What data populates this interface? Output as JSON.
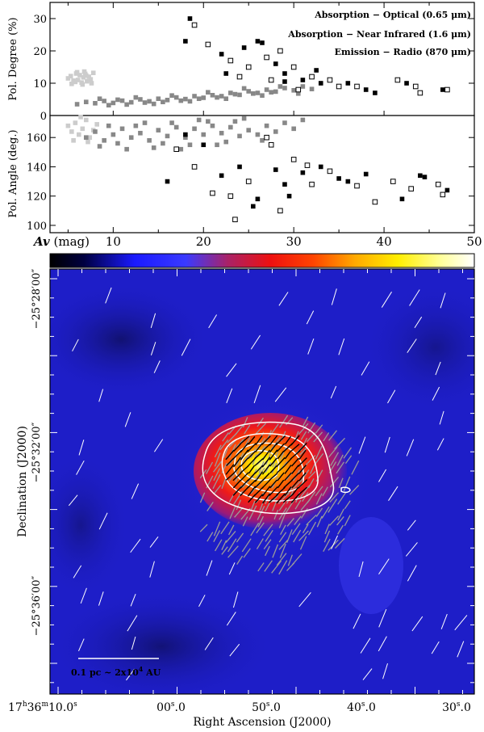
{
  "chart_data": [
    {
      "type": "scatter",
      "panel": "top",
      "ylabel": "Pol. Degree (%)",
      "ylim": [
        0,
        35
      ],
      "xlim": [
        3,
        50
      ],
      "yticks": [
        0,
        10,
        20,
        30
      ],
      "legend_position": "top-right",
      "series": [
        {
          "name": "Absorption − Optical (0.65 μm)",
          "legend": "Absorption − Optical (0.65 μm)",
          "color": "#cccccc",
          "marker": "filled-square",
          "points": [
            [
              5.0,
              11.5
            ],
            [
              5.3,
              12.2
            ],
            [
              5.6,
              10.8
            ],
            [
              5.9,
              13.0
            ],
            [
              6.1,
              11.0
            ],
            [
              6.3,
              12.5
            ],
            [
              6.5,
              10.2
            ],
            [
              6.7,
              11.8
            ],
            [
              6.9,
              12.9
            ],
            [
              7.1,
              10.6
            ],
            [
              7.3,
              12.0
            ],
            [
              7.5,
              11.2
            ],
            [
              7.8,
              13.2
            ],
            [
              5.4,
              9.8
            ],
            [
              6.0,
              13.4
            ],
            [
              6.6,
              9.6
            ],
            [
              7.0,
              12.4
            ],
            [
              7.6,
              10.0
            ],
            [
              5.8,
              10.4
            ],
            [
              6.8,
              13.6
            ]
          ]
        },
        {
          "name": "Absorption − Near Infrared (1.6 μm)",
          "legend": "Absorption − Near Infrared (1.6 μm)",
          "color": "#888888",
          "marker": "filled-square",
          "points": [
            [
              6,
              3.5
            ],
            [
              7,
              4.2
            ],
            [
              8,
              3.8
            ],
            [
              9,
              4.5
            ],
            [
              10,
              3.9
            ],
            [
              11,
              4.6
            ],
            [
              12,
              4.1
            ],
            [
              13,
              5.0
            ],
            [
              14,
              4.4
            ],
            [
              15,
              5.2
            ],
            [
              16,
              4.8
            ],
            [
              17,
              5.6
            ],
            [
              18,
              5.1
            ],
            [
              19,
              6.0
            ],
            [
              20,
              5.5
            ],
            [
              21,
              6.3
            ],
            [
              22,
              6.0
            ],
            [
              23,
              7.0
            ],
            [
              24,
              6.4
            ],
            [
              25,
              7.5
            ],
            [
              26,
              7.0
            ],
            [
              27,
              8.0
            ],
            [
              28,
              7.4
            ],
            [
              29,
              8.5
            ],
            [
              30,
              7.8
            ],
            [
              31,
              9.0
            ],
            [
              32,
              8.2
            ],
            [
              8.5,
              5.2
            ],
            [
              10.5,
              4.9
            ],
            [
              12.5,
              5.6
            ],
            [
              14.5,
              3.6
            ],
            [
              16.5,
              6.2
            ],
            [
              18.5,
              4.4
            ],
            [
              20.5,
              7.2
            ],
            [
              22.5,
              5.2
            ],
            [
              24.5,
              8.4
            ],
            [
              26.5,
              6.2
            ],
            [
              28.5,
              9.0
            ],
            [
              30.5,
              6.8
            ],
            [
              9.5,
              3.2
            ],
            [
              11.5,
              3.4
            ],
            [
              13.5,
              4.0
            ],
            [
              15.5,
              4.2
            ],
            [
              17.5,
              4.6
            ],
            [
              19.5,
              5.2
            ],
            [
              21.5,
              5.6
            ],
            [
              23.5,
              6.6
            ],
            [
              25.5,
              6.8
            ],
            [
              27.5,
              7.2
            ]
          ]
        },
        {
          "name": "Emission − Radio (870 μm)",
          "legend": "Emission − Radio (870 μm)",
          "color": "#000000",
          "marker": "filled-and-open-square",
          "points": [
            [
              18.5,
              30
            ],
            [
              19,
              28
            ],
            [
              18,
              23
            ],
            [
              20.5,
              22
            ],
            [
              22,
              19
            ],
            [
              23,
              17
            ],
            [
              24.5,
              21
            ],
            [
              25,
              15
            ],
            [
              26,
              23
            ],
            [
              27,
              18
            ],
            [
              28,
              16
            ],
            [
              28.5,
              20
            ],
            [
              29,
              13
            ],
            [
              30,
              15
            ],
            [
              31,
              11
            ],
            [
              32,
              12
            ],
            [
              33,
              10
            ],
            [
              34,
              11
            ],
            [
              36,
              10
            ],
            [
              37,
              9
            ],
            [
              38,
              8
            ],
            [
              41.5,
              11
            ],
            [
              42.5,
              10
            ],
            [
              43.5,
              9
            ],
            [
              46.5,
              8
            ],
            [
              47,
              8
            ],
            [
              26.5,
              22.5
            ],
            [
              24,
              12
            ],
            [
              29,
              10.5
            ],
            [
              30.5,
              8
            ],
            [
              22.5,
              13
            ],
            [
              27.5,
              11
            ],
            [
              32.5,
              14
            ],
            [
              35,
              9
            ],
            [
              39,
              7
            ],
            [
              44,
              7
            ]
          ]
        }
      ]
    },
    {
      "type": "scatter",
      "panel": "middle",
      "ylabel": "Pol. Angle (deg.)",
      "xlabel": "Av (mag)",
      "xlim": [
        3,
        50
      ],
      "ylim": [
        95,
        175
      ],
      "yticks": [
        100,
        120,
        140,
        160
      ],
      "xticks": [
        10,
        20,
        30,
        40,
        50
      ],
      "series": [
        {
          "name": "Absorption − Optical (0.65 μm)",
          "color": "#cccccc",
          "marker": "filled-square",
          "points": [
            [
              5.0,
              168
            ],
            [
              5.4,
              164
            ],
            [
              5.8,
              170
            ],
            [
              6.2,
              162
            ],
            [
              6.6,
              166
            ],
            [
              7.0,
              172
            ],
            [
              7.4,
              160
            ],
            [
              7.8,
              165
            ],
            [
              8.2,
              169
            ],
            [
              5.6,
              158
            ],
            [
              6.4,
              174
            ],
            [
              7.2,
              157
            ]
          ]
        },
        {
          "name": "Absorption − Near Infrared (1.6 μm)",
          "color": "#888888",
          "marker": "filled-square",
          "points": [
            [
              7,
              160
            ],
            [
              8,
              164
            ],
            [
              9,
              158
            ],
            [
              10,
              162
            ],
            [
              11,
              166
            ],
            [
              12,
              160
            ],
            [
              13,
              163
            ],
            [
              14,
              158
            ],
            [
              15,
              165
            ],
            [
              16,
              161
            ],
            [
              17,
              167
            ],
            [
              18,
              160
            ],
            [
              19,
              166
            ],
            [
              20,
              162
            ],
            [
              21,
              168
            ],
            [
              22,
              163
            ],
            [
              23,
              167
            ],
            [
              24,
              161
            ],
            [
              25,
              165
            ],
            [
              26,
              162
            ],
            [
              27,
              168
            ],
            [
              28,
              164
            ],
            [
              29,
              170
            ],
            [
              30,
              166
            ],
            [
              31,
              172
            ],
            [
              8.5,
              154
            ],
            [
              10.5,
              156
            ],
            [
              12.5,
              168
            ],
            [
              14.5,
              153
            ],
            [
              16.5,
              170
            ],
            [
              18.5,
              155
            ],
            [
              20.5,
              171
            ],
            [
              22.5,
              157
            ],
            [
              24.5,
              173
            ],
            [
              26.5,
              158
            ],
            [
              9.5,
              168
            ],
            [
              11.5,
              152
            ],
            [
              13.5,
              170
            ],
            [
              15.5,
              156
            ],
            [
              17.5,
              152
            ],
            [
              19.5,
              172
            ],
            [
              21.5,
              155
            ],
            [
              23.5,
              171
            ]
          ]
        },
        {
          "name": "Emission − Radio (870 μm)",
          "color": "#000000",
          "marker": "filled-and-open-square",
          "points": [
            [
              16,
              130
            ],
            [
              17,
              152
            ],
            [
              18,
              162
            ],
            [
              19,
              140
            ],
            [
              20,
              155
            ],
            [
              21,
              122
            ],
            [
              22,
              134
            ],
            [
              23,
              120
            ],
            [
              24,
              140
            ],
            [
              25,
              130
            ],
            [
              26,
              118
            ],
            [
              27,
              160
            ],
            [
              28,
              138
            ],
            [
              28.5,
              110
            ],
            [
              29,
              128
            ],
            [
              30,
              145
            ],
            [
              31,
              136
            ],
            [
              32,
              128
            ],
            [
              33,
              140
            ],
            [
              34,
              137
            ],
            [
              36,
              130
            ],
            [
              37,
              127
            ],
            [
              38,
              135
            ],
            [
              41,
              130
            ],
            [
              42,
              118
            ],
            [
              43,
              125
            ],
            [
              44,
              134
            ],
            [
              46,
              128
            ],
            [
              47,
              124
            ],
            [
              23.5,
              104
            ],
            [
              25.5,
              113
            ],
            [
              27.5,
              155
            ],
            [
              29.5,
              120
            ],
            [
              31.5,
              141
            ],
            [
              35,
              132
            ],
            [
              39,
              116
            ],
            [
              44.5,
              133
            ],
            [
              46.5,
              121
            ]
          ]
        }
      ]
    },
    {
      "type": "heatmap",
      "panel": "bottom",
      "xlabel": "Right Ascension (J2000)",
      "ylabel": "Declination (J2000)",
      "xticks": [
        "17h36m10.0s",
        "00.0s",
        "50.0s",
        "40.0s",
        "30.0s"
      ],
      "yticks": [
        "−25°28′00″",
        "−25°32′00″",
        "−25°36′00″"
      ],
      "colorbar": "black → blue → red → yellow → white",
      "scale_bar": "0.1 pc ~ 2x10^4 AU",
      "overlays": [
        "white contours",
        "white optical vectors",
        "grey near-infrared vectors",
        "black submillimetre vectors"
      ]
    }
  ],
  "axis_text": {
    "top_ylabel": "Pol. Degree (%)",
    "mid_ylabel": "Pol. Angle (deg.)",
    "av_label_main": "Av",
    "av_label_unit": " (mag)",
    "map_xlabel": "Right Ascension (J2000)",
    "map_ylabel": "Declination (J2000)",
    "scale_bar": "0.1 pc ~ 2x10",
    "scale_bar_exp": "4",
    "scale_bar_unit": " AU",
    "ra_first_h": "17",
    "ra_first_m": "36",
    "ra_first_s": "10.0",
    "ra_sec_unit": "s",
    "ra_ticks": [
      "00.0",
      "50.0",
      "40.0",
      "30.0"
    ],
    "dec_ticks": [
      "−25°28′00″",
      "−25°32′00″",
      "−25°36′00″"
    ],
    "top_yticks": [
      "0",
      "10",
      "20",
      "30"
    ],
    "mid_yticks": [
      "100",
      "120",
      "140",
      "160"
    ],
    "mid_xticks": [
      "10",
      "20",
      "30",
      "40",
      "50"
    ],
    "optical_color": "#cccccc",
    "nir_color": "#888888",
    "radio_color": "#000000"
  }
}
